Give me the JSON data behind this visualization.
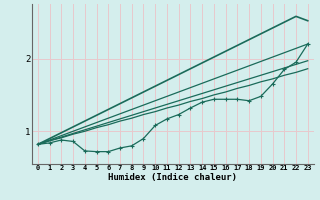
{
  "xlabel": "Humidex (Indice chaleur)",
  "ylabel": "",
  "bg_color": "#d4eeed",
  "grid_color": "#e8c8cc",
  "line_color": "#1a6b5a",
  "x_values": [
    0,
    1,
    2,
    3,
    4,
    5,
    6,
    7,
    8,
    9,
    10,
    11,
    12,
    13,
    14,
    15,
    16,
    17,
    18,
    19,
    20,
    21,
    22,
    23
  ],
  "line_zigzag": [
    0.82,
    0.84,
    0.88,
    0.86,
    0.73,
    0.72,
    0.72,
    0.77,
    0.8,
    0.9,
    1.08,
    1.17,
    1.23,
    1.32,
    1.4,
    1.44,
    1.44,
    1.44,
    1.42,
    1.48,
    1.65,
    1.85,
    1.95,
    2.2
  ],
  "line_s1": [
    0.82,
    0.87,
    0.91,
    0.96,
    1.0,
    1.05,
    1.09,
    1.14,
    1.18,
    1.23,
    1.27,
    1.32,
    1.36,
    1.41,
    1.45,
    1.5,
    1.54,
    1.59,
    1.63,
    1.68,
    1.72,
    1.77,
    1.81,
    1.86
  ],
  "line_s2": [
    0.82,
    0.87,
    0.92,
    0.97,
    1.02,
    1.07,
    1.12,
    1.17,
    1.22,
    1.27,
    1.32,
    1.37,
    1.42,
    1.47,
    1.52,
    1.57,
    1.62,
    1.67,
    1.72,
    1.77,
    1.82,
    1.87,
    1.92,
    1.97
  ],
  "line_s3": [
    0.82,
    0.88,
    0.94,
    1.0,
    1.06,
    1.12,
    1.18,
    1.24,
    1.3,
    1.36,
    1.42,
    1.48,
    1.54,
    1.6,
    1.66,
    1.72,
    1.78,
    1.84,
    1.9,
    1.96,
    2.02,
    2.08,
    2.14,
    2.2
  ],
  "line_s4": [
    0.82,
    0.9,
    0.98,
    1.06,
    1.14,
    1.22,
    1.3,
    1.38,
    1.46,
    1.54,
    1.62,
    1.7,
    1.78,
    1.86,
    1.94,
    2.02,
    2.1,
    2.18,
    2.26,
    2.34,
    2.42,
    2.5,
    2.58,
    2.52
  ],
  "ylim": [
    0.55,
    2.75
  ],
  "yticks": [
    1,
    2
  ],
  "xlim": [
    -0.5,
    23.5
  ],
  "xtick_fontsize": 5.0,
  "ytick_fontsize": 6.5,
  "xlabel_fontsize": 6.5
}
